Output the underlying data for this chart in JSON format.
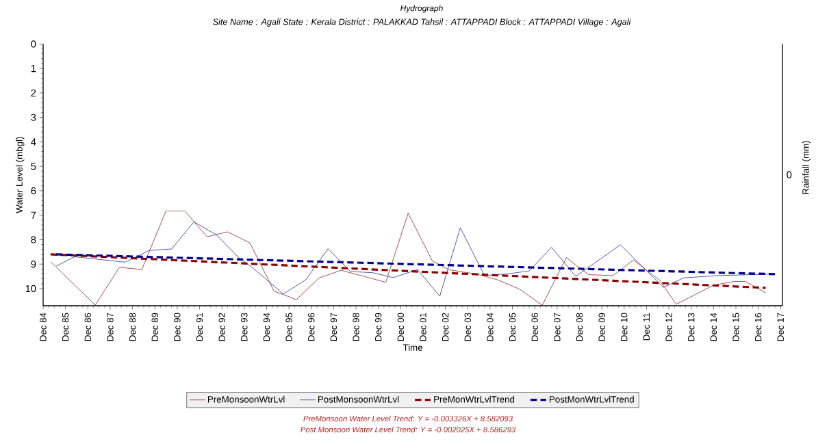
{
  "chart_data": {
    "type": "line",
    "title": "Hydrograph",
    "subtitle": "Site Name : Agali  State : Kerala District : PALAKKAD  Tahsil : ATTAPPADI  Block : ATTAPPADI Village : Agali",
    "xlabel": "Time",
    "ylabel": "Water Level (mbgl)",
    "y2label": "Rainfall (mm)",
    "xlim": [
      "1984-12",
      "2018-01"
    ],
    "ylim": [
      10.7,
      0
    ],
    "yticks": [
      0,
      1,
      2,
      3,
      4,
      5,
      6,
      7,
      8,
      9,
      10
    ],
    "xticks": [
      {
        "value": "1984-12",
        "label": "Dec 84"
      },
      {
        "value": "1985-12",
        "label": "Dec 85"
      },
      {
        "value": "1986-12",
        "label": "Dec 86"
      },
      {
        "value": "1987-12",
        "label": "Dec 87"
      },
      {
        "value": "1988-12",
        "label": "Dec 88"
      },
      {
        "value": "1989-12",
        "label": "Dec 89"
      },
      {
        "value": "1990-12",
        "label": "Dec 90"
      },
      {
        "value": "1991-12",
        "label": "Dec 91"
      },
      {
        "value": "1992-12",
        "label": "Dec 92"
      },
      {
        "value": "1993-12",
        "label": "Dec 93"
      },
      {
        "value": "1994-12",
        "label": "Dec 94"
      },
      {
        "value": "1995-12",
        "label": "Dec 95"
      },
      {
        "value": "1996-12",
        "label": "Dec 96"
      },
      {
        "value": "1997-12",
        "label": "Dec 97"
      },
      {
        "value": "1998-12",
        "label": "Dec 98"
      },
      {
        "value": "1999-12",
        "label": "Dec 99"
      },
      {
        "value": "2000-12",
        "label": "Dec 00"
      },
      {
        "value": "2001-12",
        "label": "Dec 01"
      },
      {
        "value": "2002-12",
        "label": "Dec 02"
      },
      {
        "value": "2003-12",
        "label": "Dec 03"
      },
      {
        "value": "2004-12",
        "label": "Dec 04"
      },
      {
        "value": "2005-12",
        "label": "Dec 05"
      },
      {
        "value": "2006-12",
        "label": "Dec 06"
      },
      {
        "value": "2007-12",
        "label": "Dec 07"
      },
      {
        "value": "2008-12",
        "label": "Dec 08"
      },
      {
        "value": "2009-12",
        "label": "Dec 09"
      },
      {
        "value": "2010-12",
        "label": "Dec 10"
      },
      {
        "value": "2011-12",
        "label": "Dec 11"
      },
      {
        "value": "2012-12",
        "label": "Dec 12"
      },
      {
        "value": "2013-12",
        "label": "Dec 13"
      },
      {
        "value": "2014-12",
        "label": "Dec 14"
      },
      {
        "value": "2015-12",
        "label": "Dec 15"
      },
      {
        "value": "2016-12",
        "label": "Dec 16"
      },
      {
        "value": "2017-12",
        "label": "Dec 17"
      }
    ],
    "series": [
      {
        "name": "PreMonsoonWtrLvl",
        "color": "#8b2323",
        "line_style": "solid",
        "x": [
          "1985-04",
          "1987-04",
          "1988-05",
          "1989-05",
          "1990-06",
          "1991-04",
          "1992-04",
          "1993-03",
          "1994-03",
          "1995-04",
          "1996-04",
          "1997-04",
          "1998-04",
          "2000-04",
          "2001-04",
          "2002-05",
          "2003-02",
          "2004-05",
          "2005-04",
          "2006-04",
          "2007-04",
          "2008-05",
          "2008-11",
          "2009-05",
          "2010-06",
          "2011-05",
          "2012-07",
          "2013-04",
          "2014-12",
          "2015-11",
          "2016-05",
          "2017-04"
        ],
        "values": [
          8.9,
          10.67,
          9.13,
          9.22,
          6.82,
          6.82,
          7.88,
          7.68,
          8.13,
          10.1,
          10.45,
          9.57,
          9.25,
          9.74,
          6.92,
          8.87,
          9.23,
          9.41,
          9.64,
          10.03,
          10.68,
          8.73,
          9.1,
          9.43,
          9.47,
          8.83,
          9.66,
          10.64,
          9.86,
          9.71,
          9.71,
          10.17
        ]
      },
      {
        "name": "PostMonsoonWtrLvl",
        "color": "#1f2f8f",
        "line_style": "solid",
        "x": [
          "1985-07",
          "1986-05",
          "1988-08",
          "1989-09",
          "1990-09",
          "1991-09",
          "1992-09",
          "1993-09",
          "1994-05",
          "1995-09",
          "1996-09",
          "1997-09",
          "1998-09",
          "1999-09",
          "2000-08",
          "2001-09",
          "2002-09",
          "2003-08",
          "2004-09",
          "2005-09",
          "2006-09",
          "2007-09",
          "2008-10",
          "2010-10",
          "2012-09",
          "2013-08",
          "2015-02",
          "2017-09"
        ],
        "values": [
          9.08,
          8.7,
          8.92,
          8.44,
          8.38,
          7.27,
          7.8,
          8.73,
          9.18,
          10.22,
          9.64,
          8.37,
          9.3,
          9.35,
          9.55,
          9.22,
          10.31,
          7.51,
          9.47,
          9.4,
          9.28,
          8.31,
          9.5,
          8.21,
          9.95,
          9.56,
          9.47,
          9.4
        ]
      },
      {
        "name": "PreMonWtrLvlTrend",
        "color": "#8b0000",
        "line_style": "dashed",
        "x": [
          "1985-04",
          "2017-04"
        ],
        "values": [
          8.6,
          9.97
        ]
      },
      {
        "name": "PostMonWtrLvlTrend",
        "color": "#00008b",
        "line_style": "dashed",
        "x": [
          "1985-07",
          "2017-09"
        ],
        "values": [
          8.6,
          9.41
        ]
      }
    ],
    "legend": "bottom",
    "annotations": [
      "0",
      "*PreMonsoon Water Level Trend: Y = -0.003326X + 8.582093*",
      "*Post Monsoon Water Level Trend: Y = -0.002025X + 8.586293*"
    ]
  }
}
